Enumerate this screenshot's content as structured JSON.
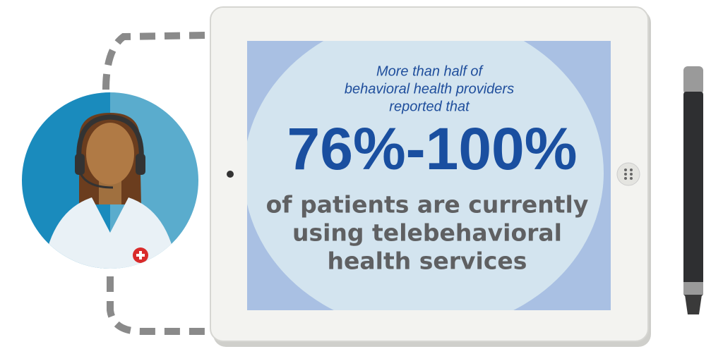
{
  "intro": [
    "More than half of",
    "behavioral health providers",
    "reported that"
  ],
  "stat": "76%-100%",
  "body": [
    "of patients are currently",
    "using telebehavioral",
    "health services"
  ]
}
